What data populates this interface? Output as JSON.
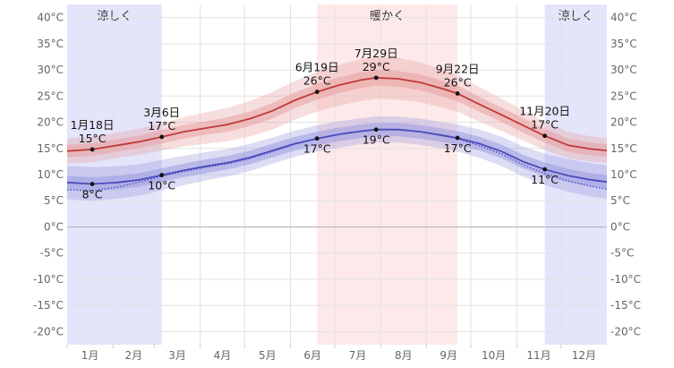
{
  "chart_data": {
    "type": "line",
    "title": "",
    "xlabel": "",
    "ylabel": "",
    "ylim": [
      -22.5,
      42.5
    ],
    "xlim": [
      1,
      366
    ],
    "y_ticks": [
      -20,
      -15,
      -10,
      -5,
      0,
      5,
      10,
      15,
      20,
      25,
      30,
      35,
      40
    ],
    "y_tick_labels": [
      "-20°C",
      "-15°C",
      "-10°C",
      "-5°C",
      "0°C",
      "5°C",
      "10°C",
      "15°C",
      "20°C",
      "25°C",
      "30°C",
      "35°C",
      "40°C"
    ],
    "month_labels": [
      "1月",
      "2月",
      "3月",
      "4月",
      "5月",
      "6月",
      "7月",
      "8月",
      "9月",
      "10月",
      "11月",
      "12月"
    ],
    "grid": true,
    "bands": [
      {
        "label": "涼しく",
        "start_day": 1,
        "end_day": 65,
        "color": "#e4e4fb"
      },
      {
        "label": "暖かく",
        "start_day": 170,
        "end_day": 265,
        "color": "#fde9e9"
      },
      {
        "label": "涼しく",
        "start_day": 324,
        "end_day": 366,
        "color": "#e4e4fb"
      }
    ],
    "series": [
      {
        "color": "#c03a3a",
        "band_color": "#e8a0a0",
        "x": [
          1,
          18,
          35,
          50,
          65,
          80,
          95,
          110,
          125,
          140,
          155,
          170,
          185,
          200,
          210,
          225,
          240,
          255,
          265,
          280,
          295,
          310,
          324,
          340,
          355,
          366
        ],
        "values": [
          14.5,
          14.8,
          15.6,
          16.3,
          17.2,
          18.2,
          18.9,
          19.6,
          20.7,
          22.2,
          24.2,
          25.8,
          27.1,
          28.1,
          28.5,
          28.3,
          27.6,
          26.4,
          25.5,
          23.4,
          21.4,
          19.3,
          17.4,
          15.6,
          14.9,
          14.6
        ],
        "band_inner": [
          1.2,
          1.2,
          1.2,
          1.2,
          1.3,
          1.3,
          1.3,
          1.4,
          1.4,
          1.5,
          1.5,
          1.5,
          1.5,
          1.5,
          1.5,
          1.5,
          1.5,
          1.5,
          1.5,
          1.4,
          1.4,
          1.4,
          1.3,
          1.3,
          1.2,
          1.2
        ],
        "band_outer": [
          2.4,
          2.4,
          2.4,
          2.5,
          2.6,
          2.8,
          3.0,
          3.2,
          3.4,
          3.6,
          3.7,
          3.8,
          3.9,
          4.0,
          4.0,
          4.0,
          3.8,
          3.6,
          3.5,
          3.3,
          3.1,
          2.9,
          2.7,
          2.5,
          2.4,
          2.4
        ]
      },
      {
        "color": "#4b4bbd",
        "band_color": "#9b9be0",
        "x": [
          1,
          18,
          35,
          50,
          65,
          80,
          95,
          110,
          125,
          140,
          155,
          170,
          185,
          200,
          210,
          225,
          240,
          255,
          265,
          280,
          295,
          310,
          324,
          340,
          355,
          366
        ],
        "values": [
          8.5,
          8.2,
          8.5,
          9.0,
          9.9,
          10.8,
          11.6,
          12.3,
          13.3,
          14.6,
          15.9,
          16.9,
          17.7,
          18.3,
          18.6,
          18.6,
          18.2,
          17.5,
          17.0,
          15.9,
          14.4,
          12.4,
          11.0,
          9.8,
          9.0,
          8.6
        ],
        "band_inner": [
          1.3,
          1.3,
          1.3,
          1.3,
          1.3,
          1.3,
          1.3,
          1.3,
          1.3,
          1.3,
          1.3,
          1.3,
          1.3,
          1.3,
          1.3,
          1.3,
          1.3,
          1.3,
          1.3,
          1.3,
          1.3,
          1.3,
          1.3,
          1.3,
          1.3,
          1.3
        ],
        "band_outer": [
          3.2,
          3.2,
          3.1,
          3.0,
          2.9,
          2.8,
          2.7,
          2.6,
          2.6,
          2.5,
          2.5,
          2.5,
          2.5,
          2.5,
          2.5,
          2.5,
          2.5,
          2.5,
          2.6,
          2.7,
          2.8,
          2.9,
          3.0,
          3.1,
          3.2,
          3.2
        ]
      },
      {
        "color": "#4b4bbd",
        "style": "dotted",
        "x": [
          1,
          18,
          35,
          50,
          65,
          80,
          95,
          110,
          125,
          140,
          155,
          170,
          185,
          200,
          210,
          225,
          240,
          255,
          265,
          280,
          295,
          310,
          324,
          340,
          355,
          366
        ],
        "values": [
          7.1,
          6.9,
          7.6,
          8.6,
          9.7,
          10.6,
          11.4,
          12.1,
          13.1,
          14.4,
          15.8,
          16.8,
          17.7,
          18.3,
          18.6,
          18.6,
          18.2,
          17.4,
          16.8,
          15.5,
          13.9,
          11.8,
          10.2,
          8.8,
          7.8,
          7.2
        ]
      }
    ],
    "annotations": [
      {
        "day": 18,
        "value": 14.8,
        "date": "1月18日",
        "label": "15°C",
        "position": "above"
      },
      {
        "day": 18,
        "value": 8.2,
        "date": "",
        "label": "8°C",
        "position": "below"
      },
      {
        "day": 65,
        "value": 17.2,
        "date": "3月6日",
        "label": "17°C",
        "position": "above"
      },
      {
        "day": 65,
        "value": 9.9,
        "date": "",
        "label": "10°C",
        "position": "below"
      },
      {
        "day": 170,
        "value": 25.8,
        "date": "6月19日",
        "label": "26°C",
        "position": "above"
      },
      {
        "day": 170,
        "value": 16.9,
        "date": "",
        "label": "17°C",
        "position": "below"
      },
      {
        "day": 210,
        "value": 28.5,
        "date": "7月29日",
        "label": "29°C",
        "position": "above"
      },
      {
        "day": 210,
        "value": 18.6,
        "date": "",
        "label": "19°C",
        "position": "below"
      },
      {
        "day": 265,
        "value": 25.5,
        "date": "9月22日",
        "label": "26°C",
        "position": "above"
      },
      {
        "day": 265,
        "value": 17.0,
        "date": "",
        "label": "17°C",
        "position": "below"
      },
      {
        "day": 324,
        "value": 17.4,
        "date": "11月20日",
        "label": "17°C",
        "position": "above"
      },
      {
        "day": 324,
        "value": 11.0,
        "date": "",
        "label": "11°C",
        "position": "below"
      }
    ]
  }
}
